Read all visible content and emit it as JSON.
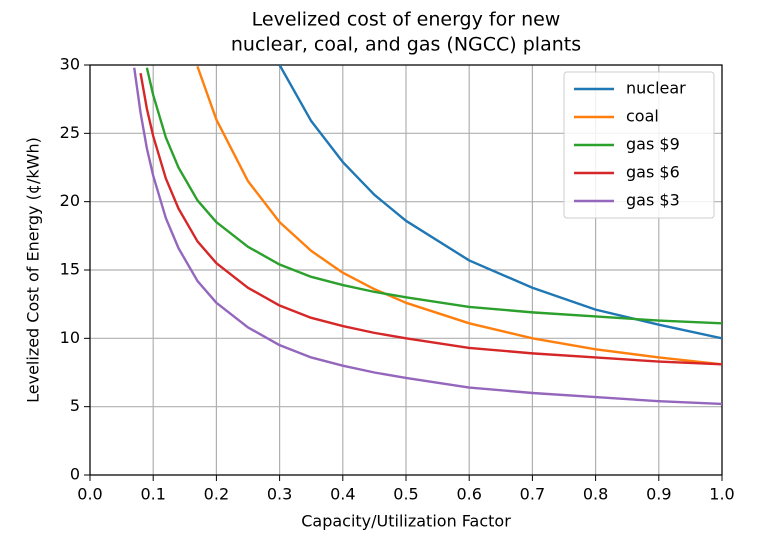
{
  "chart_data": {
    "type": "line",
    "title": [
      "Levelized cost of energy for new",
      "nuclear, coal, and gas (NGCC) plants"
    ],
    "x_label": "Capacity/Utilization Factor",
    "y_label": "Levelized Cost of Energy (¢/kWh)",
    "x": [
      0.07,
      0.08,
      0.09,
      0.1,
      0.12,
      0.14,
      0.17,
      0.2,
      0.25,
      0.3,
      0.35,
      0.4,
      0.45,
      0.5,
      0.6,
      0.7,
      0.8,
      0.9,
      1.0
    ],
    "series": [
      {
        "name": "nuclear",
        "color": "#1f77b4",
        "values": [
          null,
          null,
          null,
          null,
          null,
          null,
          null,
          null,
          null,
          30.0,
          25.9,
          22.9,
          20.5,
          18.6,
          15.7,
          13.7,
          12.1,
          11.0,
          10.0
        ]
      },
      {
        "name": "coal",
        "color": "#ff7f0e",
        "values": [
          null,
          null,
          null,
          null,
          null,
          null,
          29.9,
          26.0,
          21.5,
          18.5,
          16.4,
          14.8,
          13.6,
          12.6,
          11.1,
          10.0,
          9.2,
          8.6,
          8.1
        ]
      },
      {
        "name": "gas $9",
        "color": "#2ca02c",
        "values": [
          null,
          null,
          29.8,
          27.8,
          24.7,
          22.5,
          20.1,
          18.5,
          16.7,
          15.4,
          14.5,
          13.9,
          13.4,
          13.0,
          12.3,
          11.9,
          11.6,
          11.3,
          11.1
        ]
      },
      {
        "name": "gas $6",
        "color": "#d62728",
        "values": [
          null,
          29.4,
          26.8,
          24.8,
          21.7,
          19.5,
          17.1,
          15.5,
          13.7,
          12.4,
          11.5,
          10.9,
          10.4,
          10.0,
          9.3,
          8.9,
          8.6,
          8.3,
          8.1
        ]
      },
      {
        "name": "gas $3",
        "color": "#9467bd",
        "values": [
          29.8,
          26.5,
          23.9,
          21.9,
          18.8,
          16.6,
          14.2,
          12.6,
          10.8,
          9.5,
          8.6,
          8.0,
          7.5,
          7.1,
          6.4,
          6.0,
          5.7,
          5.4,
          5.2
        ]
      }
    ],
    "xlim": [
      0,
      1
    ],
    "ylim": [
      0,
      30
    ],
    "xticks": [
      {
        "value": 0,
        "label": "0.0"
      },
      0.1,
      0.2,
      0.3,
      0.4,
      0.5,
      0.6,
      0.7,
      0.8,
      0.9,
      {
        "value": 1,
        "label": "1.0"
      }
    ],
    "yticks": [
      0,
      5,
      10,
      15,
      20,
      25,
      30
    ],
    "grid": true,
    "legend": "upper right"
  }
}
